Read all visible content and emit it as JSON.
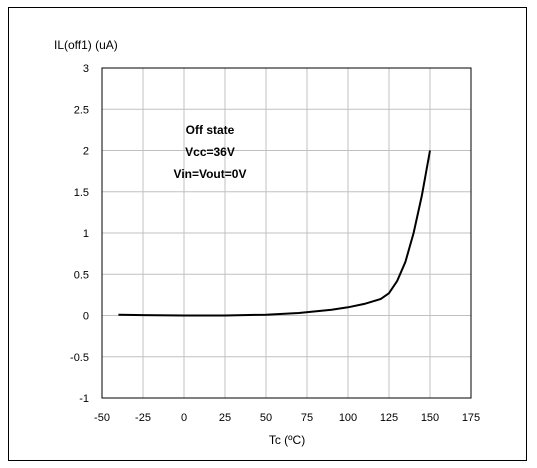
{
  "chart_data": {
    "type": "line",
    "xlabel": "Tc (ºC)",
    "ylabel": "IL(off1) (uA)",
    "xlim": [
      -50,
      175
    ],
    "ylim": [
      -1,
      3
    ],
    "x_ticks": [
      "-50",
      "-25",
      "0",
      "25",
      "50",
      "75",
      "100",
      "125",
      "150",
      "175"
    ],
    "y_ticks": [
      "3",
      "2.5",
      "2",
      "1.5",
      "1",
      "0.5",
      "0",
      "-0.5",
      "-1"
    ],
    "grid": true,
    "annotation": [
      "Off state",
      "Vcc=36V",
      "Vin=Vout=0V"
    ],
    "series": [
      {
        "x": [
          -40,
          -25,
          0,
          25,
          50,
          60,
          70,
          80,
          90,
          100,
          110,
          120,
          125,
          130,
          135,
          140,
          145,
          150
        ],
        "y": [
          0.01,
          0.005,
          0.0,
          0.0,
          0.01,
          0.02,
          0.03,
          0.05,
          0.07,
          0.1,
          0.14,
          0.2,
          0.27,
          0.42,
          0.65,
          1.0,
          1.45,
          2.0
        ]
      }
    ],
    "colors": {
      "line": "#000000",
      "grid": "#c0c0c0",
      "axis": "#000000"
    }
  }
}
